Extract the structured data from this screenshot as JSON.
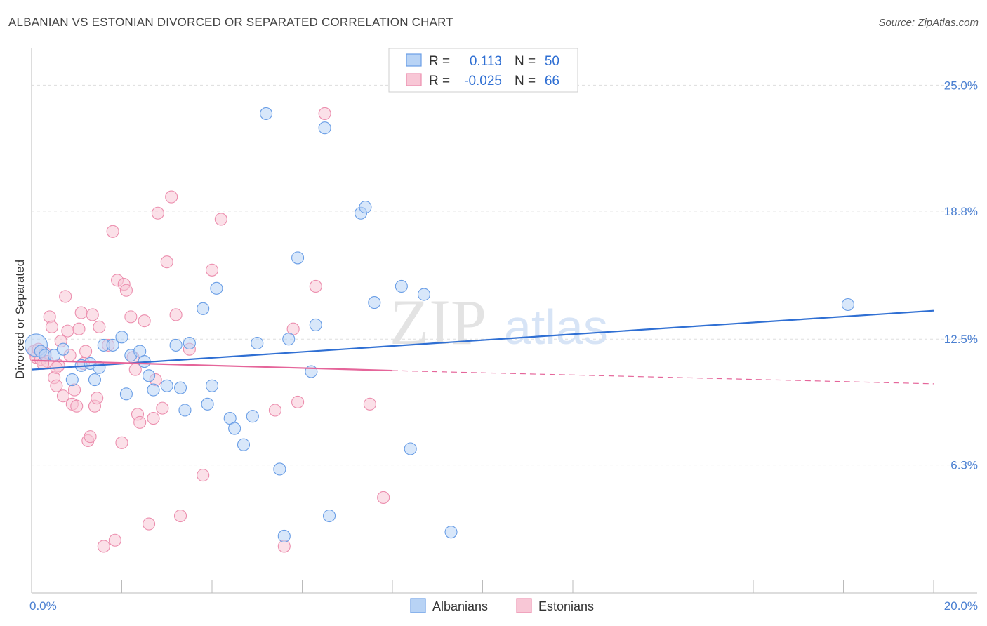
{
  "header": {
    "title": "ALBANIAN VS ESTONIAN DIVORCED OR SEPARATED CORRELATION CHART",
    "source": "Source: ZipAtlas.com"
  },
  "watermark": {
    "zip": "ZIP",
    "atlas": "atlas"
  },
  "colors": {
    "albanian_fill": "#b8d3f5",
    "albanian_stroke": "#6a9ee6",
    "albanian_line": "#2f6fd3",
    "estonian_fill": "#f8c7d6",
    "estonian_stroke": "#ec8eae",
    "estonian_line": "#e5659a",
    "tick_text": "#4a7fd1",
    "grid": "#dddddd"
  },
  "legend_top": {
    "rows": [
      {
        "r_label": "R =",
        "r_value": "0.113",
        "n_label": "N =",
        "n_value": "50"
      },
      {
        "r_label": "R =",
        "r_value": "-0.025",
        "n_label": "N =",
        "n_value": "66"
      }
    ]
  },
  "chart_data": {
    "type": "scatter",
    "title": "ALBANIAN VS ESTONIAN DIVORCED OR SEPARATED CORRELATION CHART",
    "xlabel": "",
    "ylabel": "Divorced or Separated",
    "xlim": [
      0,
      20
    ],
    "ylim": [
      0,
      26.5
    ],
    "x_tick_labels": [
      {
        "value": 0,
        "label": "0.0%"
      },
      {
        "value": 20,
        "label": "20.0%"
      }
    ],
    "y_tick_labels": [
      {
        "value": 6.3,
        "label": "6.3%"
      },
      {
        "value": 12.5,
        "label": "12.5%"
      },
      {
        "value": 18.8,
        "label": "18.8%"
      },
      {
        "value": 25.0,
        "label": "25.0%"
      }
    ],
    "grid": true,
    "legend_position": "bottom-center",
    "series": [
      {
        "name": "Albanians",
        "trend": {
          "x": [
            0,
            20
          ],
          "y": [
            11.0,
            13.9
          ]
        },
        "points": [
          [
            0.1,
            12.2
          ],
          [
            0.2,
            11.9
          ],
          [
            0.3,
            11.7
          ],
          [
            0.5,
            11.7
          ],
          [
            0.7,
            12.0
          ],
          [
            0.9,
            10.5
          ],
          [
            1.1,
            11.2
          ],
          [
            1.3,
            11.3
          ],
          [
            1.4,
            10.5
          ],
          [
            1.5,
            11.1
          ],
          [
            1.6,
            12.2
          ],
          [
            1.8,
            12.2
          ],
          [
            2.0,
            12.6
          ],
          [
            2.1,
            9.8
          ],
          [
            2.2,
            11.7
          ],
          [
            2.4,
            11.9
          ],
          [
            2.5,
            11.4
          ],
          [
            2.6,
            10.7
          ],
          [
            2.7,
            10.0
          ],
          [
            3.0,
            10.2
          ],
          [
            3.2,
            12.2
          ],
          [
            3.3,
            10.1
          ],
          [
            3.4,
            9.0
          ],
          [
            3.5,
            12.3
          ],
          [
            3.8,
            14.0
          ],
          [
            3.9,
            9.3
          ],
          [
            4.0,
            10.2
          ],
          [
            4.1,
            15.0
          ],
          [
            4.4,
            8.6
          ],
          [
            4.5,
            8.1
          ],
          [
            4.7,
            7.3
          ],
          [
            4.9,
            8.7
          ],
          [
            5.0,
            12.3
          ],
          [
            5.2,
            23.6
          ],
          [
            5.5,
            6.1
          ],
          [
            5.6,
            2.8
          ],
          [
            5.7,
            12.5
          ],
          [
            5.9,
            16.5
          ],
          [
            6.2,
            10.9
          ],
          [
            6.3,
            13.2
          ],
          [
            6.5,
            22.9
          ],
          [
            6.6,
            3.8
          ],
          [
            7.3,
            18.7
          ],
          [
            7.4,
            19.0
          ],
          [
            7.6,
            14.3
          ],
          [
            8.2,
            15.1
          ],
          [
            8.4,
            7.1
          ],
          [
            8.7,
            14.7
          ],
          [
            9.3,
            3.0
          ],
          [
            18.1,
            14.2
          ]
        ]
      },
      {
        "name": "Estonians",
        "trend": {
          "x": [
            0,
            8
          ],
          "y": [
            11.45,
            10.95
          ]
        },
        "trend_dashed": {
          "x": [
            8,
            20
          ],
          "y": [
            10.95,
            10.3
          ]
        },
        "points": [
          [
            0.05,
            11.9
          ],
          [
            0.1,
            11.6
          ],
          [
            0.15,
            12.0
          ],
          [
            0.2,
            11.5
          ],
          [
            0.3,
            11.8
          ],
          [
            0.35,
            11.4
          ],
          [
            0.4,
            13.6
          ],
          [
            0.45,
            13.1
          ],
          [
            0.5,
            10.6
          ],
          [
            0.55,
            10.2
          ],
          [
            0.6,
            11.2
          ],
          [
            0.65,
            12.4
          ],
          [
            0.7,
            9.7
          ],
          [
            0.75,
            14.6
          ],
          [
            0.8,
            12.9
          ],
          [
            0.85,
            11.7
          ],
          [
            0.9,
            9.3
          ],
          [
            0.95,
            10.0
          ],
          [
            1.0,
            9.2
          ],
          [
            1.1,
            13.8
          ],
          [
            1.2,
            11.9
          ],
          [
            1.25,
            7.5
          ],
          [
            1.3,
            7.7
          ],
          [
            1.35,
            13.7
          ],
          [
            1.4,
            9.2
          ],
          [
            1.45,
            9.6
          ],
          [
            1.5,
            13.1
          ],
          [
            1.6,
            2.3
          ],
          [
            1.7,
            12.2
          ],
          [
            1.8,
            17.8
          ],
          [
            1.85,
            2.6
          ],
          [
            1.9,
            15.4
          ],
          [
            2.0,
            7.4
          ],
          [
            2.05,
            15.2
          ],
          [
            2.1,
            14.9
          ],
          [
            2.2,
            13.6
          ],
          [
            2.25,
            11.6
          ],
          [
            2.3,
            11.0
          ],
          [
            2.35,
            8.8
          ],
          [
            2.4,
            8.4
          ],
          [
            2.5,
            13.4
          ],
          [
            2.6,
            3.4
          ],
          [
            2.7,
            8.6
          ],
          [
            2.75,
            10.5
          ],
          [
            2.8,
            18.7
          ],
          [
            2.9,
            9.1
          ],
          [
            3.0,
            16.3
          ],
          [
            3.1,
            19.5
          ],
          [
            3.2,
            13.7
          ],
          [
            3.3,
            3.8
          ],
          [
            3.5,
            12.0
          ],
          [
            3.8,
            5.8
          ],
          [
            4.0,
            15.9
          ],
          [
            4.2,
            18.4
          ],
          [
            5.4,
            9.0
          ],
          [
            5.6,
            2.3
          ],
          [
            5.8,
            13.0
          ],
          [
            5.9,
            9.4
          ],
          [
            6.3,
            15.1
          ],
          [
            6.5,
            23.6
          ],
          [
            7.5,
            9.3
          ],
          [
            7.8,
            4.7
          ],
          [
            0.25,
            11.3
          ],
          [
            0.55,
            11.1
          ],
          [
            1.15,
            11.3
          ],
          [
            1.05,
            13.0
          ]
        ]
      }
    ]
  },
  "legend_bottom": {
    "items": [
      "Albanians",
      "Estonians"
    ]
  }
}
